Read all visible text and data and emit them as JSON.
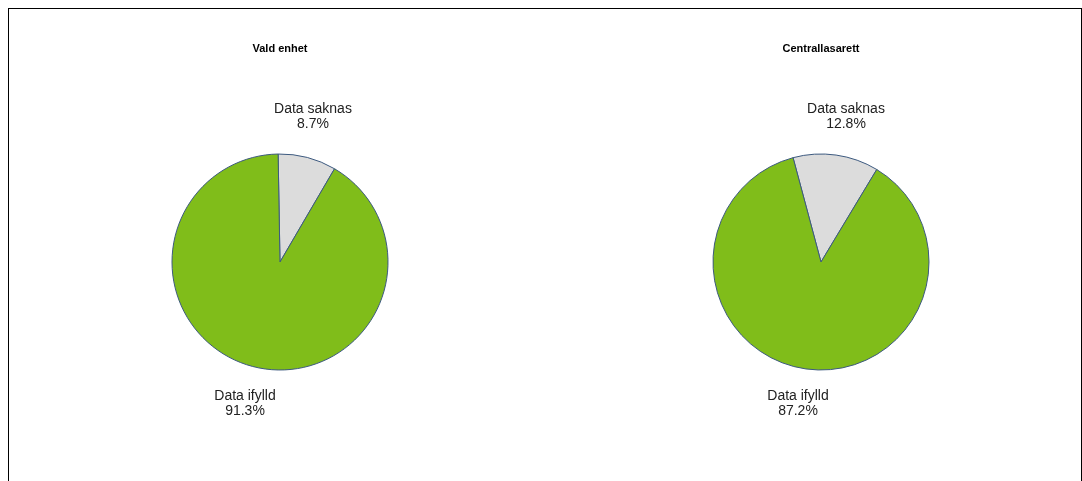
{
  "chart_data": [
    {
      "type": "pie",
      "title": "Vald enhet",
      "categories": [
        "Data saknas",
        "Data ifylld"
      ],
      "values": [
        8.7,
        91.3
      ],
      "value_labels": [
        "8.7%",
        "91.3%"
      ],
      "colors": [
        "#dcdcdc",
        "#80bd1a"
      ]
    },
    {
      "type": "pie",
      "title": "Centrallasarett",
      "categories": [
        "Data saknas",
        "Data ifylld"
      ],
      "values": [
        12.8,
        87.2
      ],
      "value_labels": [
        "12.8%",
        "87.2%"
      ],
      "colors": [
        "#dcdcdc",
        "#80bd1a"
      ]
    }
  ]
}
